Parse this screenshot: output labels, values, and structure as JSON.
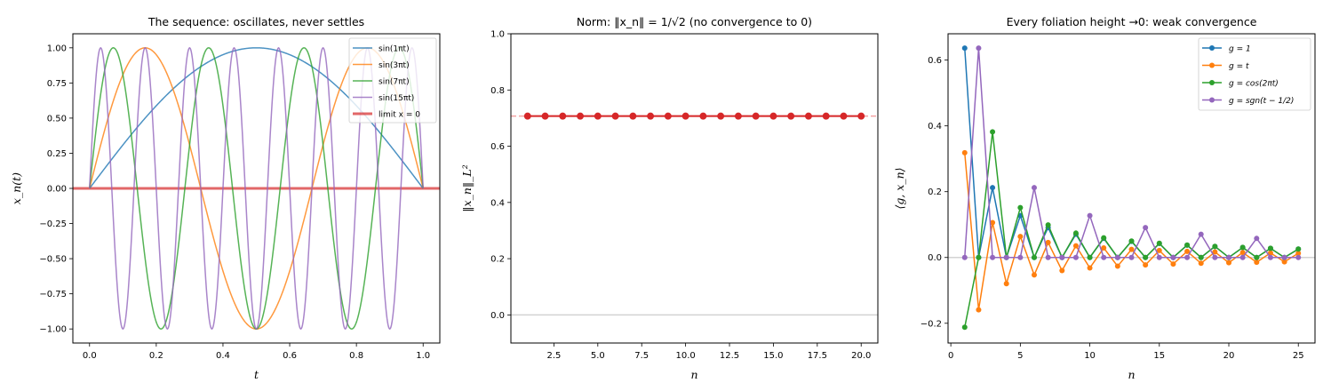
{
  "chart_data": [
    {
      "type": "line",
      "title": "The sequence: oscillates, never settles",
      "xlabel": "t",
      "ylabel": "x_n(t)",
      "xlim": [
        -0.05,
        1.05
      ],
      "ylim": [
        -1.1,
        1.1
      ],
      "xticks": [
        "0.0",
        "0.2",
        "0.4",
        "0.6",
        "0.8",
        "1.0"
      ],
      "yticks": [
        "−1.00",
        "−0.75",
        "−0.50",
        "−0.25",
        "0.00",
        "0.25",
        "0.50",
        "0.75",
        "1.00"
      ],
      "legend_position": "upper right",
      "grid": false,
      "series": [
        {
          "name": "sin(1πt)",
          "frequency": 1,
          "color": "#1f77b4"
        },
        {
          "name": "sin(3πt)",
          "frequency": 3,
          "color": "#ff7f0e"
        },
        {
          "name": "sin(7πt)",
          "frequency": 7,
          "color": "#2ca02c"
        },
        {
          "name": "sin(15πt)",
          "frequency": 15,
          "color": "#9467bd"
        },
        {
          "name": "limit x = 0",
          "constant": 0,
          "color": "#d62728"
        }
      ]
    },
    {
      "type": "line",
      "title": "Norm: ‖x_n‖ = 1/√2 (no convergence to 0)",
      "xlabel": "n",
      "ylabel": "‖x_n‖_L²",
      "xlim": [
        0.05,
        20.95
      ],
      "ylim": [
        -0.1,
        1.0
      ],
      "xticks": [
        "2.5",
        "5.0",
        "7.5",
        "10.0",
        "12.5",
        "15.0",
        "17.5",
        "20.0"
      ],
      "yticks": [
        "0.0",
        "0.2",
        "0.4",
        "0.6",
        "0.8",
        "1.0"
      ],
      "grid": false,
      "x": [
        1,
        2,
        3,
        4,
        5,
        6,
        7,
        8,
        9,
        10,
        11,
        12,
        13,
        14,
        15,
        16,
        17,
        18,
        19,
        20
      ],
      "series": [
        {
          "name": "norm",
          "color": "#d62728",
          "values": [
            0.7071,
            0.7071,
            0.7071,
            0.7071,
            0.7071,
            0.7071,
            0.7071,
            0.7071,
            0.7071,
            0.7071,
            0.7071,
            0.7071,
            0.7071,
            0.7071,
            0.7071,
            0.7071,
            0.7071,
            0.7071,
            0.7071,
            0.7071
          ]
        }
      ],
      "reference_lines": [
        {
          "y": 0.7071,
          "style": "dashed",
          "color": "#f4a3a3"
        },
        {
          "y": 0.0,
          "style": "solid",
          "color": "#d3d3d3"
        }
      ]
    },
    {
      "type": "line",
      "title": "Every foliation height →0: weak convergence",
      "xlabel": "n",
      "ylabel": "⟨g, x_n⟩",
      "xlim": [
        -0.2,
        26.2
      ],
      "ylim": [
        -0.26,
        0.68
      ],
      "xticks": [
        "0",
        "5",
        "10",
        "15",
        "20",
        "25"
      ],
      "yticks": [
        "−0.2",
        "0.0",
        "0.2",
        "0.4",
        "0.6"
      ],
      "legend_position": "upper right",
      "grid": false,
      "x": [
        1,
        2,
        3,
        4,
        5,
        6,
        7,
        8,
        9,
        10,
        11,
        12,
        13,
        14,
        15,
        16,
        17,
        18,
        19,
        20,
        21,
        22,
        23,
        24,
        25
      ],
      "series": [
        {
          "name": "g = 1",
          "color": "#1f77b4",
          "values": [
            0.6366,
            0,
            0.2122,
            0,
            0.1273,
            0,
            0.0909,
            0,
            0.0707,
            0,
            0.0579,
            0,
            0.049,
            0,
            0.0424,
            0,
            0.0374,
            0,
            0.0335,
            0,
            0.0303,
            0,
            0.0277,
            0,
            0.0255
          ]
        },
        {
          "name": "g = t",
          "color": "#ff7f0e",
          "values": [
            0.3183,
            -0.1592,
            0.1061,
            -0.0796,
            0.0637,
            -0.0531,
            0.0455,
            -0.0398,
            0.0354,
            -0.0318,
            0.0289,
            -0.0265,
            0.0245,
            -0.0227,
            0.0212,
            -0.0199,
            0.0187,
            -0.0177,
            0.0168,
            -0.0159,
            0.0152,
            -0.0145,
            0.0138,
            -0.0133,
            0.0127
          ]
        },
        {
          "name": "g = cos(2πt)",
          "color": "#2ca02c",
          "values": [
            -0.2122,
            0,
            0.382,
            0,
            0.1516,
            0,
            0.099,
            0,
            0.0741,
            0,
            0.0596,
            0,
            0.05,
            0,
            0.0431,
            0,
            0.0379,
            0,
            0.0339,
            0,
            0.0306,
            0,
            0.0279,
            0,
            0.0256
          ]
        },
        {
          "name": "g = sgn(t − 1/2)",
          "color": "#9467bd",
          "values": [
            0,
            0.6366,
            0,
            0,
            0,
            0.2122,
            0,
            0,
            0,
            0.1273,
            0,
            0,
            0,
            0.0909,
            0,
            0,
            0,
            0.0707,
            0,
            0,
            0,
            0.0579,
            0,
            0,
            0
          ]
        }
      ],
      "reference_lines": [
        {
          "y": 0.0,
          "style": "solid",
          "color": "#d3d3d3"
        }
      ]
    }
  ]
}
